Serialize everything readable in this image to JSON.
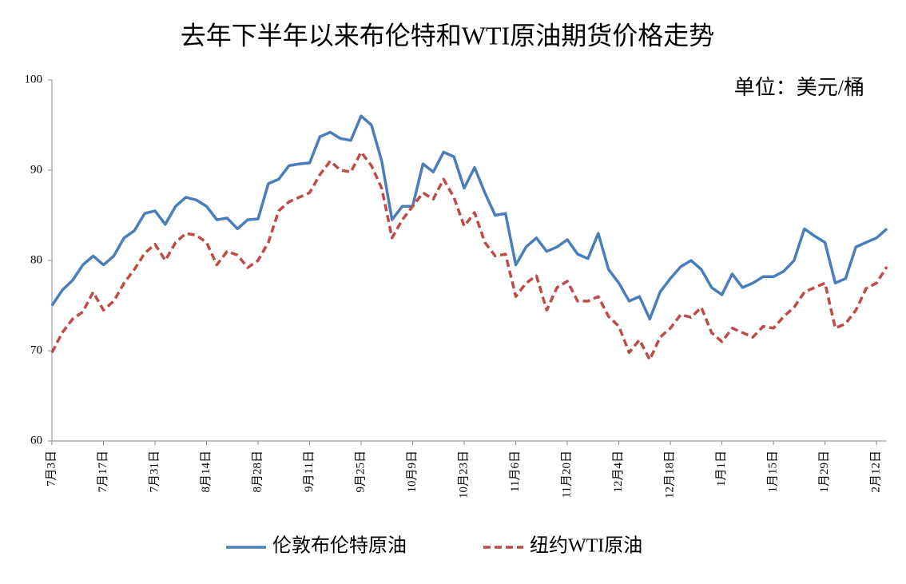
{
  "chart_data": {
    "type": "line",
    "title": "去年下半年以来布伦特和WTI原油期货价格走势",
    "annotation": "单位：美元/桶",
    "categories": [
      "7月3日",
      null,
      null,
      null,
      null,
      "7月17日",
      null,
      null,
      null,
      null,
      "7月31日",
      null,
      null,
      null,
      null,
      "8月14日",
      null,
      null,
      null,
      null,
      "8月28日",
      null,
      null,
      null,
      null,
      "9月11日",
      null,
      null,
      null,
      null,
      "9月25日",
      null,
      null,
      null,
      null,
      "10月9日",
      null,
      null,
      null,
      null,
      "10月23日",
      null,
      null,
      null,
      null,
      "11月6日",
      null,
      null,
      null,
      null,
      "11月20日",
      null,
      null,
      null,
      null,
      "12月4日",
      null,
      null,
      null,
      null,
      "12月18日",
      null,
      null,
      null,
      null,
      "1月1日",
      null,
      null,
      null,
      null,
      "1月15日",
      null,
      null,
      null,
      null,
      "1月29日",
      null,
      null,
      null,
      null,
      "2月12日",
      null
    ],
    "series": [
      {
        "name": "伦敦布伦特原油",
        "color": "#4a7ebb",
        "line_style": "solid",
        "values": [
          75,
          76.7,
          77.8,
          79.5,
          80.5,
          79.5,
          80.5,
          82.5,
          83.3,
          85.2,
          85.5,
          84,
          86,
          87,
          86.7,
          86,
          84.5,
          84.7,
          83.5,
          84.5,
          84.6,
          88.5,
          89,
          90.5,
          90.7,
          90.8,
          93.7,
          94.2,
          93.5,
          93.3,
          96,
          95,
          91,
          84.5,
          86,
          86,
          90.7,
          89.8,
          92,
          91.5,
          88,
          90.3,
          87.5,
          85,
          85.2,
          79.5,
          81.5,
          82.5,
          81,
          81.5,
          82.3,
          80.7,
          80.2,
          83,
          79,
          77.5,
          75.5,
          76,
          73.5,
          76.5,
          78,
          79.3,
          80,
          79,
          77,
          76.2,
          78.5,
          77,
          77.5,
          78.2,
          78.2,
          78.8,
          80,
          83.5,
          82.7,
          82,
          77.5,
          78,
          81.5,
          82,
          82.5,
          83.5
        ]
      },
      {
        "name": "纽约WTI原油",
        "color": "#be4b48",
        "line_style": "dashed",
        "values": [
          69.8,
          72,
          73.5,
          74.3,
          76.5,
          74.5,
          75.5,
          77.5,
          79,
          80.8,
          81.8,
          80,
          82,
          83,
          82.8,
          82,
          79.5,
          81,
          80.6,
          79.2,
          80,
          82,
          85.5,
          86.5,
          87,
          87.5,
          89.5,
          91,
          90,
          89.8,
          92,
          90.5,
          88,
          82.5,
          84.5,
          86,
          87.5,
          86.8,
          89,
          87,
          83.8,
          85.3,
          82,
          80.5,
          80.7,
          76,
          77.5,
          78.3,
          74.5,
          77,
          77.7,
          75.5,
          75.5,
          76,
          73.8,
          72.7,
          69.8,
          71.2,
          69,
          71.5,
          72.5,
          74,
          73.7,
          74.8,
          72,
          71,
          72.5,
          72,
          71.5,
          72.7,
          72.5,
          73.8,
          74.8,
          76.5,
          77,
          77.5,
          72.5,
          73,
          74.5,
          76.9,
          77.5,
          79.3
        ]
      }
    ],
    "ylim": [
      60,
      100
    ],
    "yticks": [
      60,
      70,
      80,
      90,
      100
    ],
    "grid": false,
    "legend": "bottom"
  }
}
